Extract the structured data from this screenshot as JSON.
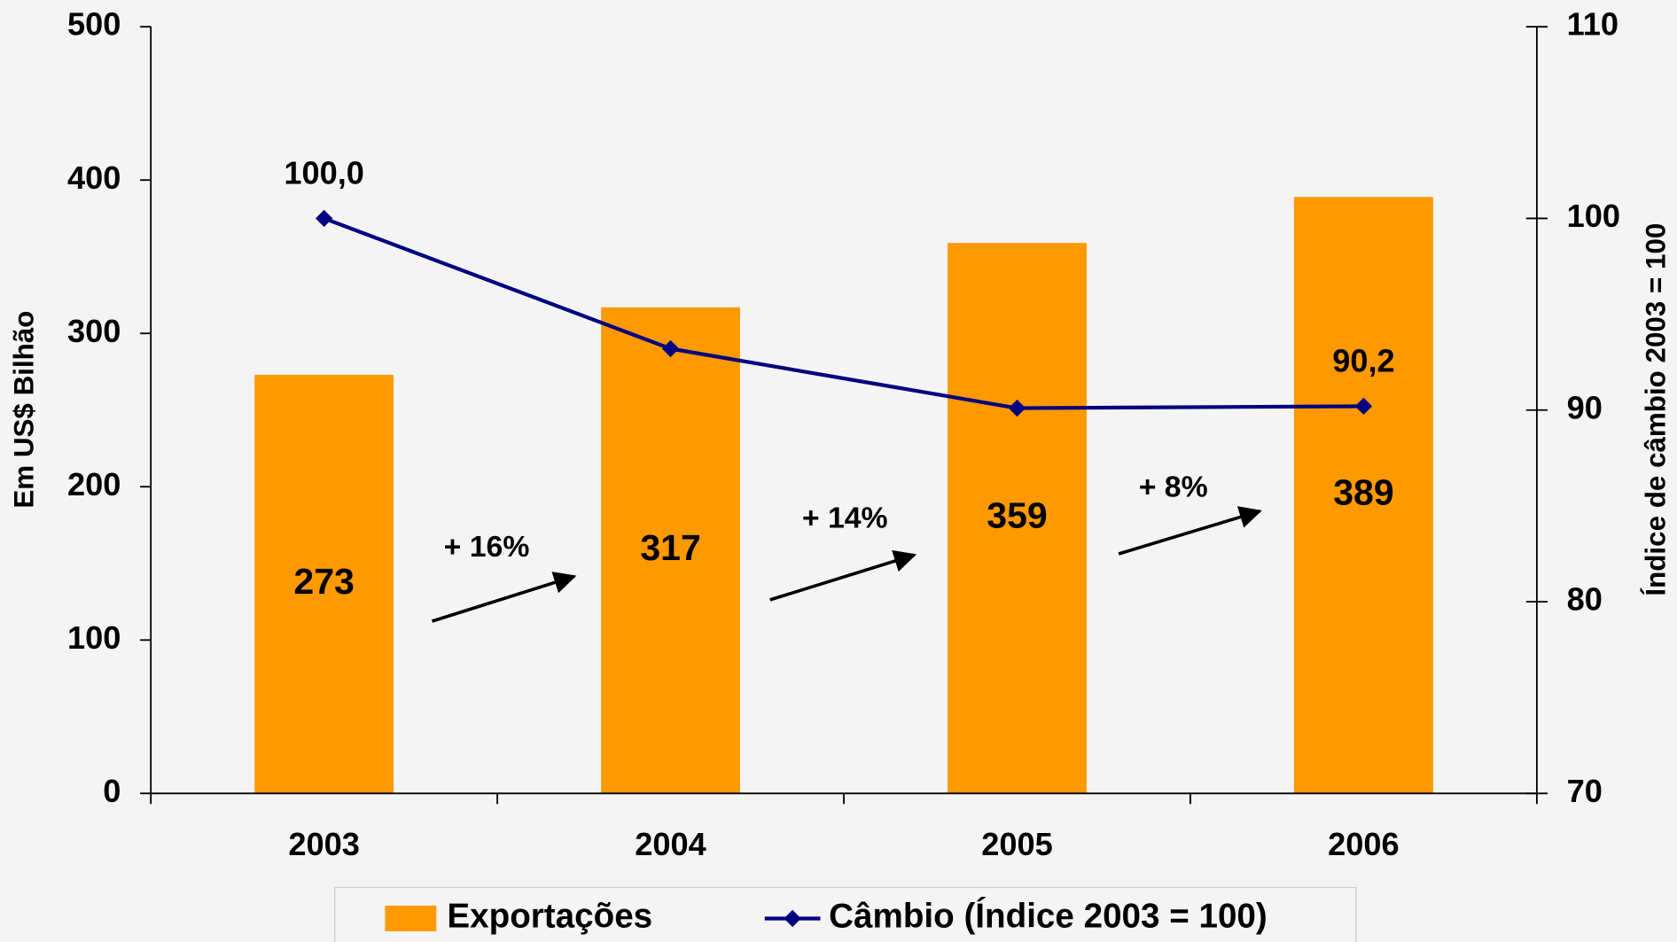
{
  "chart_data": {
    "type": "bar-line",
    "categories": [
      "2003",
      "2004",
      "2005",
      "2006"
    ],
    "series": [
      {
        "name": "Exportações",
        "type": "bar",
        "color": "#FF9900",
        "values": [
          273,
          317,
          359,
          389
        ]
      },
      {
        "name": "Câmbio (Índice 2003 = 100)",
        "type": "line",
        "axis": "y2",
        "color": "#000080",
        "values": [
          100.0,
          93.2,
          90.1,
          90.2
        ],
        "value_labels": [
          "100,0",
          null,
          null,
          "90,2"
        ]
      }
    ],
    "ylabel": "Em US$ Bilhão",
    "y2label": "Índice de câmbio 2003 = 100",
    "ylim": [
      0,
      500
    ],
    "yticks": [
      0,
      100,
      200,
      300,
      400,
      500
    ],
    "y2lim": [
      70,
      110
    ],
    "y2ticks": [
      70,
      80,
      90,
      100,
      110
    ],
    "annotations": [
      "+ 16%",
      "+ 14%",
      "+ 8%"
    ],
    "legend": "bottom"
  }
}
